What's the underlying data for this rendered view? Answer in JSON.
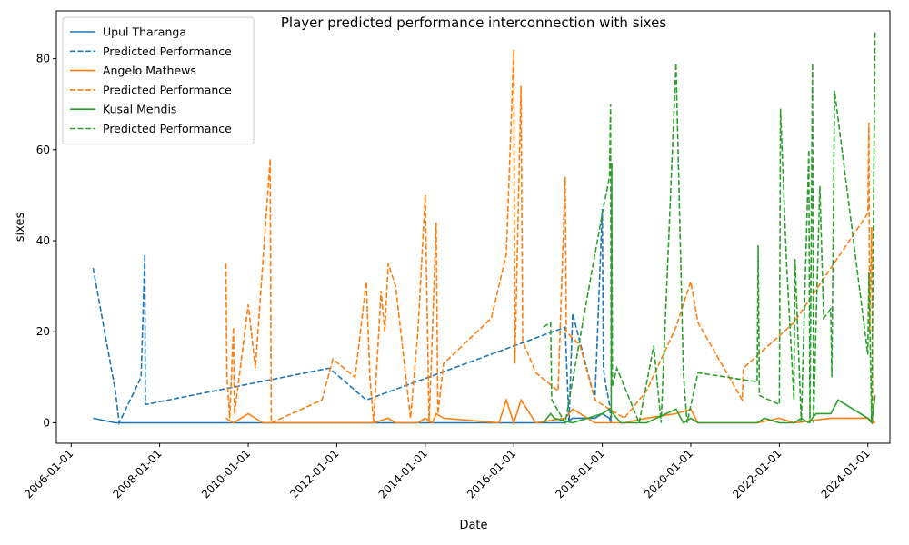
{
  "chart_data": {
    "type": "line",
    "title": "Player predicted performance interconnection with sixes",
    "xlabel": "Date",
    "ylabel": "sixes",
    "x_axis_type": "date",
    "xlim": [
      "2005-09-01",
      "2024-07-01"
    ],
    "ylim": [
      -4.5,
      90.5
    ],
    "x_ticks": [
      "2006-01-01",
      "2008-01-01",
      "2010-01-01",
      "2012-01-01",
      "2014-01-01",
      "2016-01-01",
      "2018-01-01",
      "2020-01-01",
      "2022-01-01",
      "2024-01-01"
    ],
    "y_ticks": [
      0,
      20,
      40,
      60,
      80
    ],
    "grid": false,
    "legend_position": "top-left",
    "colors": {
      "blue": "#1f77b4",
      "orange": "#ff7f0e",
      "green": "#2ca02c"
    },
    "series": [
      {
        "name": "Upul Tharanga",
        "color": "#1f77b4",
        "style": "solid",
        "points": [
          [
            "2006-07-01",
            1
          ],
          [
            "2007-01-01",
            0
          ],
          [
            "2007-09-01",
            0
          ],
          [
            "2009-01-01",
            0
          ],
          [
            "2011-01-01",
            0
          ],
          [
            "2013-01-01",
            0
          ],
          [
            "2015-01-01",
            0
          ],
          [
            "2017-03-01",
            0
          ],
          [
            "2017-05-01",
            1
          ],
          [
            "2017-11-01",
            1
          ],
          [
            "2018-01-01",
            2
          ],
          [
            "2018-03-01",
            1
          ],
          [
            "2018-03-15",
            0
          ]
        ]
      },
      {
        "name": "Predicted Performance",
        "color": "#1f77b4",
        "style": "dashed",
        "points": [
          [
            "2006-07-01",
            34
          ],
          [
            "2007-01-01",
            7
          ],
          [
            "2007-02-01",
            0
          ],
          [
            "2007-08-01",
            10
          ],
          [
            "2007-09-01",
            37
          ],
          [
            "2007-09-05",
            4
          ],
          [
            "2011-11-01",
            12
          ],
          [
            "2012-09-01",
            5
          ],
          [
            "2017-03-01",
            21
          ],
          [
            "2017-04-01",
            0
          ],
          [
            "2017-05-01",
            24
          ],
          [
            "2017-11-01",
            5
          ],
          [
            "2018-01-01",
            47
          ],
          [
            "2018-01-10",
            12
          ],
          [
            "2018-02-01",
            8
          ],
          [
            "2018-03-01",
            4
          ],
          [
            "2018-03-15",
            0
          ]
        ]
      },
      {
        "name": "Angelo Mathews",
        "color": "#ff7f0e",
        "style": "solid",
        "points": [
          [
            "2009-07-01",
            1
          ],
          [
            "2009-09-01",
            0
          ],
          [
            "2010-01-01",
            2
          ],
          [
            "2010-05-01",
            0
          ],
          [
            "2010-07-01",
            0
          ],
          [
            "2012-11-01",
            0
          ],
          [
            "2013-03-01",
            1
          ],
          [
            "2013-05-01",
            0
          ],
          [
            "2013-11-01",
            0
          ],
          [
            "2014-01-01",
            1
          ],
          [
            "2014-03-01",
            0
          ],
          [
            "2014-04-01",
            2
          ],
          [
            "2014-06-01",
            1
          ],
          [
            "2015-09-01",
            0
          ],
          [
            "2015-11-01",
            5
          ],
          [
            "2016-01-01",
            0
          ],
          [
            "2016-03-01",
            5
          ],
          [
            "2016-07-01",
            0
          ],
          [
            "2017-03-01",
            1
          ],
          [
            "2017-05-01",
            3
          ],
          [
            "2017-11-01",
            0
          ],
          [
            "2018-07-01",
            0
          ],
          [
            "2019-01-01",
            1
          ],
          [
            "2019-09-01",
            2
          ],
          [
            "2020-01-01",
            3
          ],
          [
            "2020-03-01",
            0
          ],
          [
            "2021-07-01",
            0
          ],
          [
            "2022-01-01",
            1
          ],
          [
            "2022-05-01",
            0
          ],
          [
            "2023-03-01",
            1
          ],
          [
            "2024-01-01",
            1
          ],
          [
            "2024-03-01",
            0
          ]
        ]
      },
      {
        "name": "Predicted Performance",
        "color": "#ff7f0e",
        "style": "dashed",
        "points": [
          [
            "2009-07-01",
            35
          ],
          [
            "2009-07-10",
            10
          ],
          [
            "2009-08-01",
            1
          ],
          [
            "2009-09-01",
            21
          ],
          [
            "2009-09-10",
            2
          ],
          [
            "2010-01-01",
            26
          ],
          [
            "2010-03-01",
            12
          ],
          [
            "2010-07-01",
            58
          ],
          [
            "2010-07-10",
            0
          ],
          [
            "2011-09-01",
            5
          ],
          [
            "2011-12-01",
            14
          ],
          [
            "2012-06-01",
            10
          ],
          [
            "2012-09-01",
            31
          ],
          [
            "2012-10-01",
            10
          ],
          [
            "2012-11-01",
            0
          ],
          [
            "2013-01-01",
            29
          ],
          [
            "2013-02-01",
            20
          ],
          [
            "2013-03-01",
            35
          ],
          [
            "2013-05-01",
            30
          ],
          [
            "2013-09-01",
            1
          ],
          [
            "2013-11-01",
            20
          ],
          [
            "2014-01-01",
            50
          ],
          [
            "2014-02-01",
            0
          ],
          [
            "2014-03-01",
            20
          ],
          [
            "2014-04-01",
            44
          ],
          [
            "2014-04-15",
            2
          ],
          [
            "2014-06-01",
            13
          ],
          [
            "2015-07-01",
            23
          ],
          [
            "2015-11-01",
            37
          ],
          [
            "2016-01-01",
            82
          ],
          [
            "2016-01-10",
            13
          ],
          [
            "2016-03-01",
            74
          ],
          [
            "2016-03-15",
            18
          ],
          [
            "2016-07-01",
            11
          ],
          [
            "2017-01-01",
            7
          ],
          [
            "2017-03-01",
            54
          ],
          [
            "2017-03-10",
            20
          ],
          [
            "2017-07-01",
            17
          ],
          [
            "2017-11-01",
            5
          ],
          [
            "2018-07-01",
            1
          ],
          [
            "2019-01-01",
            7
          ],
          [
            "2019-09-01",
            21
          ],
          [
            "2020-01-01",
            31
          ],
          [
            "2020-03-01",
            22
          ],
          [
            "2021-03-01",
            5
          ],
          [
            "2021-03-10",
            12
          ],
          [
            "2022-05-01",
            22
          ],
          [
            "2024-01-01",
            46
          ],
          [
            "2024-01-10",
            66
          ],
          [
            "2024-01-15",
            20
          ],
          [
            "2024-02-01",
            43
          ],
          [
            "2024-02-10",
            0
          ],
          [
            "2024-03-01",
            0
          ]
        ]
      },
      {
        "name": "Kusal Mendis",
        "color": "#2ca02c",
        "style": "solid",
        "points": [
          [
            "2016-09-01",
            0
          ],
          [
            "2016-11-01",
            2
          ],
          [
            "2016-12-01",
            1
          ],
          [
            "2017-05-01",
            0
          ],
          [
            "2018-01-01",
            2
          ],
          [
            "2018-03-01",
            3
          ],
          [
            "2018-06-01",
            0
          ],
          [
            "2019-01-01",
            0
          ],
          [
            "2019-09-01",
            3
          ],
          [
            "2019-11-01",
            0
          ],
          [
            "2020-01-01",
            1
          ],
          [
            "2020-03-01",
            0
          ],
          [
            "2021-07-01",
            0
          ],
          [
            "2021-09-01",
            1
          ],
          [
            "2022-01-01",
            0
          ],
          [
            "2022-05-01",
            0
          ],
          [
            "2022-07-01",
            1
          ],
          [
            "2022-09-01",
            0
          ],
          [
            "2022-11-01",
            2
          ],
          [
            "2023-01-01",
            2
          ],
          [
            "2023-03-01",
            2
          ],
          [
            "2023-05-01",
            5
          ],
          [
            "2024-01-01",
            1
          ],
          [
            "2024-02-01",
            0
          ],
          [
            "2024-03-01",
            6
          ]
        ]
      },
      {
        "name": "Predicted Performance",
        "color": "#2ca02c",
        "style": "dashed",
        "points": [
          [
            "2016-09-01",
            21
          ],
          [
            "2016-11-01",
            22
          ],
          [
            "2016-11-10",
            5
          ],
          [
            "2017-03-01",
            0
          ],
          [
            "2017-09-01",
            28
          ],
          [
            "2018-01-01",
            46
          ],
          [
            "2018-03-01",
            54
          ],
          [
            "2018-03-10",
            70
          ],
          [
            "2018-03-15",
            1
          ],
          [
            "2018-03-20",
            57
          ],
          [
            "2018-03-25",
            8
          ],
          [
            "2018-05-01",
            12
          ],
          [
            "2018-11-01",
            0
          ],
          [
            "2019-03-01",
            17
          ],
          [
            "2019-05-01",
            0
          ],
          [
            "2019-09-01",
            79
          ],
          [
            "2019-11-01",
            11
          ],
          [
            "2019-12-01",
            0
          ],
          [
            "2020-03-01",
            11
          ],
          [
            "2021-07-01",
            9
          ],
          [
            "2021-07-10",
            39
          ],
          [
            "2021-07-20",
            6
          ],
          [
            "2022-01-01",
            4
          ],
          [
            "2022-01-10",
            69
          ],
          [
            "2022-03-01",
            35
          ],
          [
            "2022-05-01",
            5
          ],
          [
            "2022-05-10",
            36
          ],
          [
            "2022-07-01",
            0
          ],
          [
            "2022-09-01",
            60
          ],
          [
            "2022-09-10",
            0
          ],
          [
            "2022-10-01",
            79
          ],
          [
            "2022-10-10",
            0
          ],
          [
            "2022-11-01",
            23
          ],
          [
            "2022-12-01",
            52
          ],
          [
            "2023-01-01",
            23
          ],
          [
            "2023-03-01",
            25
          ],
          [
            "2023-03-10",
            10
          ],
          [
            "2023-04-01",
            73
          ],
          [
            "2024-01-01",
            15
          ],
          [
            "2024-01-10",
            33
          ],
          [
            "2024-02-01",
            0
          ],
          [
            "2024-03-01",
            86
          ]
        ]
      }
    ]
  }
}
